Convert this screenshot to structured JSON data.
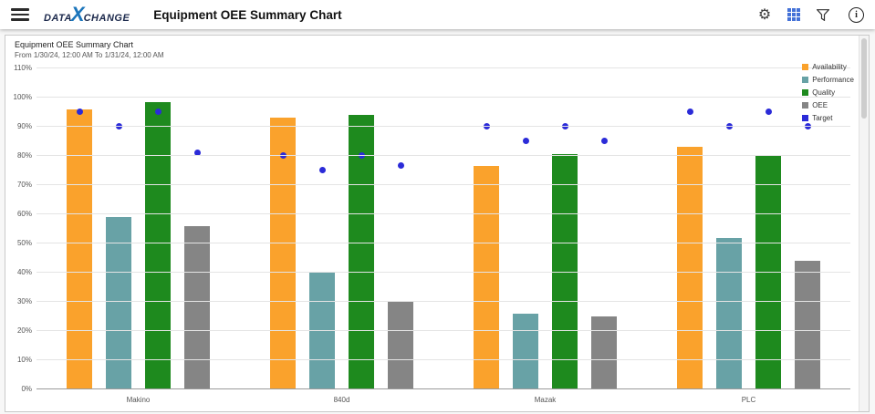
{
  "header": {
    "title": "Equipment OEE Summary Chart",
    "logo": {
      "word1": "DATA",
      "x": "X",
      "word2": "CHANGE"
    },
    "icons": {
      "gear_glyph": "⚙",
      "info_glyph": "i"
    }
  },
  "chart_data": {
    "type": "bar",
    "title": "Equipment OEE Summary Chart",
    "subtitle": "From 1/30/24, 12:00 AM To 1/31/24, 12:00 AM",
    "categories": [
      "Makino",
      "840d",
      "Mazak",
      "PLC"
    ],
    "series": [
      {
        "name": "Availability",
        "type": "bar",
        "color": "#FAA22C",
        "values": [
          96,
          93,
          76.5,
          83
        ]
      },
      {
        "name": "Performance",
        "type": "bar",
        "color": "#68A2A6",
        "values": [
          59,
          40,
          26,
          52
        ]
      },
      {
        "name": "Quality",
        "type": "bar",
        "color": "#1E8A1E",
        "values": [
          98.5,
          94,
          80.5,
          80
        ]
      },
      {
        "name": "OEE",
        "type": "bar",
        "color": "#858585",
        "values": [
          56,
          30,
          25,
          44
        ]
      },
      {
        "name": "Target",
        "type": "point",
        "color": "#2B2BD8",
        "values_per_category": [
          [
            95,
            90,
            95,
            81
          ],
          [
            80,
            75,
            80,
            76.5
          ],
          [
            90,
            85,
            90,
            85
          ],
          [
            95,
            90,
            95,
            90
          ]
        ]
      }
    ],
    "ylim": [
      0,
      110
    ],
    "yticks": [
      "0%",
      "10%",
      "20%",
      "30%",
      "40%",
      "50%",
      "60%",
      "70%",
      "80%",
      "90%",
      "100%",
      "110%"
    ],
    "grid": true,
    "legend_position": "top-right"
  }
}
